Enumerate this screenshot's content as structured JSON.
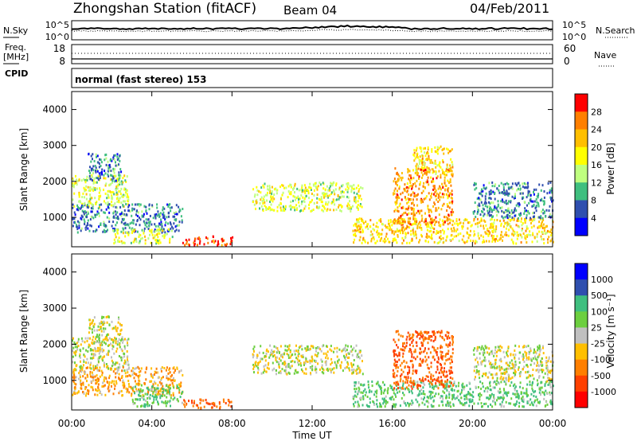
{
  "header": {
    "title": "Zhongshan Station (fitACF)",
    "beam": "Beam 04",
    "date": "04/Feb/2011"
  },
  "top_panels": {
    "nsky_label": "N.Sky",
    "nsearch_label": "N.Search",
    "nsky_ticks": [
      "10^5",
      "10^0"
    ],
    "nsearch_ticks": [
      "10^5",
      "10^0"
    ],
    "freq_label": "Freq.",
    "freq_unit": "[MHz]",
    "freq_ticks": [
      "18",
      "8"
    ],
    "nave_label": "Nave",
    "nave_ticks": [
      "60",
      "0"
    ],
    "cpid_label": "CPID",
    "cpid_text": "normal (fast stereo) 153"
  },
  "chart_data": [
    {
      "type": "heatmap",
      "name": "power",
      "ylabel": "Slant Range [km]",
      "yticks": [
        "4000",
        "3000",
        "2000",
        "1000"
      ],
      "ylim": [
        180,
        4500
      ],
      "colorbar_label": "Power [dB]",
      "colorbar_ticks": [
        "28",
        "24",
        "20",
        "16",
        "12",
        "8",
        "4"
      ],
      "colorbar_colors": [
        "#ff0000",
        "#ff7f00",
        "#ffbf00",
        "#ffff00",
        "#bfff7f",
        "#3fbf7f",
        "#2f4faf",
        "#0000ff"
      ],
      "bands": [
        {
          "t0": 0.0,
          "t1": 2.8,
          "r0": 1300,
          "r1": 2200,
          "level": 16
        },
        {
          "t0": 0.8,
          "t1": 2.5,
          "r0": 2000,
          "r1": 2800,
          "level": 8
        },
        {
          "t0": 0.0,
          "t1": 5.5,
          "r0": 600,
          "r1": 1400,
          "level": 8
        },
        {
          "t0": 2.0,
          "t1": 5.0,
          "r0": 300,
          "r1": 700,
          "level": 16
        },
        {
          "t0": 5.5,
          "t1": 8.0,
          "r0": 250,
          "r1": 500,
          "level": 28
        },
        {
          "t0": 9.0,
          "t1": 14.5,
          "r0": 1200,
          "r1": 2000,
          "level": 16
        },
        {
          "t0": 14.0,
          "t1": 24.0,
          "r0": 300,
          "r1": 1000,
          "level": 20
        },
        {
          "t0": 16.0,
          "t1": 19.0,
          "r0": 800,
          "r1": 2400,
          "level": 24
        },
        {
          "t0": 17.0,
          "t1": 19.0,
          "r0": 2200,
          "r1": 3000,
          "level": 20
        },
        {
          "t0": 20.0,
          "t1": 24.0,
          "r0": 1000,
          "r1": 2000,
          "level": 8
        }
      ]
    },
    {
      "type": "heatmap",
      "name": "velocity",
      "ylabel": "Slant Range [km]",
      "yticks": [
        "4000",
        "3000",
        "2000",
        "1000"
      ],
      "ylim": [
        180,
        4500
      ],
      "colorbar_label": "Velocity [m s⁻¹]",
      "colorbar_ticks": [
        "1000",
        "500",
        "100",
        "25",
        "-25",
        "-100",
        "-500",
        "-1000"
      ],
      "colorbar_colors": [
        "#0000ff",
        "#2f4faf",
        "#3fbf7f",
        "#6ccf3f",
        "#c0c0c0",
        "#ffbf00",
        "#ff7f00",
        "#ff4000",
        "#ff0000"
      ],
      "bands": [
        {
          "t0": 0.0,
          "t1": 2.8,
          "r0": 1300,
          "r1": 2200,
          "level": 0
        },
        {
          "t0": 0.8,
          "t1": 2.5,
          "r0": 2000,
          "r1": 2800,
          "level": 0
        },
        {
          "t0": 0.0,
          "t1": 5.5,
          "r0": 600,
          "r1": 1400,
          "level": -100
        },
        {
          "t0": 3.0,
          "t1": 5.5,
          "r0": 300,
          "r1": 900,
          "level": 100
        },
        {
          "t0": 5.5,
          "t1": 8.0,
          "r0": 250,
          "r1": 500,
          "level": -500
        },
        {
          "t0": 9.0,
          "t1": 14.5,
          "r0": 1200,
          "r1": 2000,
          "level": 0
        },
        {
          "t0": 14.0,
          "t1": 24.0,
          "r0": 300,
          "r1": 1000,
          "level": 100
        },
        {
          "t0": 16.0,
          "t1": 19.0,
          "r0": 800,
          "r1": 2400,
          "level": -500
        },
        {
          "t0": 20.0,
          "t1": 24.0,
          "r0": 1000,
          "r1": 2000,
          "level": 0
        }
      ]
    }
  ],
  "xaxis": {
    "label": "Time UT",
    "ticks": [
      "00:00",
      "04:00",
      "08:00",
      "12:00",
      "16:00",
      "20:00",
      "00:00"
    ]
  }
}
